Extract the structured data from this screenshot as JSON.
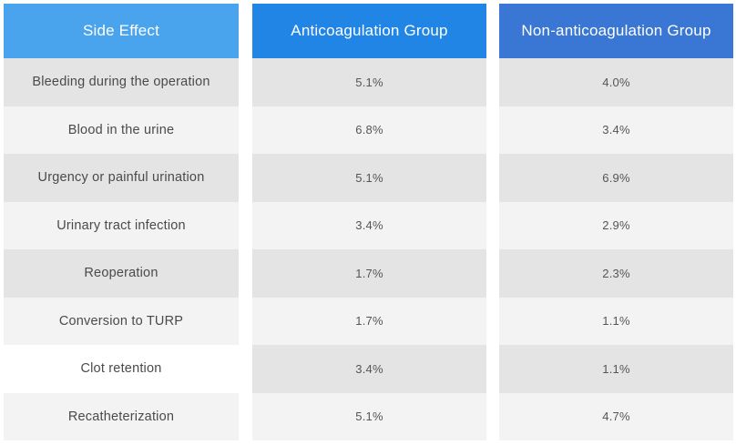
{
  "headers": [
    "Side Effect",
    "Anticoagulation Group",
    "Non-anticoagulation Group"
  ],
  "rows": [
    {
      "side_effect": "Bleeding during the operation",
      "anticoagulation": "5.1%",
      "non_anticoagulation": "4.0%"
    },
    {
      "side_effect": "Blood in the urine",
      "anticoagulation": "6.8%",
      "non_anticoagulation": "3.4%"
    },
    {
      "side_effect": "Urgency or painful urination",
      "anticoagulation": "5.1%",
      "non_anticoagulation": "6.9%"
    },
    {
      "side_effect": "Urinary tract infection",
      "anticoagulation": "3.4%",
      "non_anticoagulation": "2.9%"
    },
    {
      "side_effect": "Reoperation",
      "anticoagulation": "1.7%",
      "non_anticoagulation": "2.3%"
    },
    {
      "side_effect": "Conversion to TURP",
      "anticoagulation": "1.7%",
      "non_anticoagulation": "1.1%"
    },
    {
      "side_effect": "Clot retention",
      "anticoagulation": "3.4%",
      "non_anticoagulation": "1.1%"
    },
    {
      "side_effect": "Recatheterization",
      "anticoagulation": "5.1%",
      "non_anticoagulation": "4.7%"
    }
  ],
  "colors": {
    "header_side_effect": "#4aa3ed",
    "header_anticoagulation": "#2185e6",
    "header_non_anticoagulation": "#3a76d3",
    "row_dark": "#e4e4e4",
    "row_light": "#f3f3f3"
  }
}
